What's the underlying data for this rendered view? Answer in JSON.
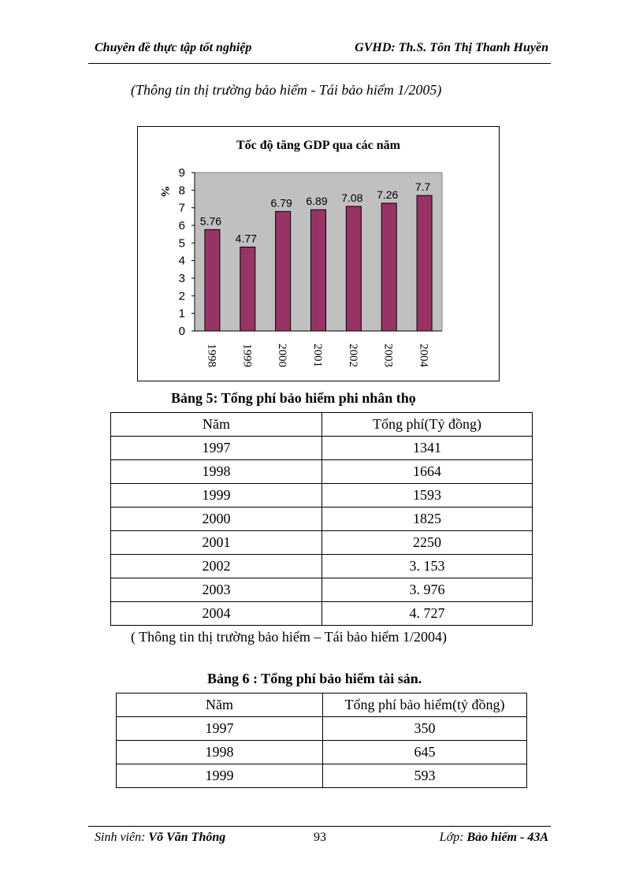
{
  "header": {
    "left": "Chuyên đề thực tập tốt nghiệp",
    "right": "GVHD: Th.S. Tôn Thị Thanh Huyền"
  },
  "source_top": "(Thông tin thị trường bảo hiểm - Tái bảo hiểm 1/2005)",
  "chart_data": {
    "type": "bar",
    "title": "Tốc độ tăng GDP qua các năm",
    "ylabel": "%",
    "xlabel": "",
    "categories": [
      "1998",
      "1999",
      "2000",
      "2001",
      "2002",
      "2003",
      "2004"
    ],
    "values": [
      5.76,
      4.77,
      6.79,
      6.89,
      7.08,
      7.26,
      7.7
    ],
    "data_labels": [
      "5.76",
      "4.77",
      "6.79",
      "6.89",
      "7.08",
      "7.26",
      "7.7"
    ],
    "ylim": [
      0,
      9
    ],
    "yticks": [
      "0",
      "1",
      "2",
      "3",
      "4",
      "5",
      "6",
      "7",
      "8",
      "9"
    ],
    "bar_color": "#993366",
    "plot_bg": "#c0c0c0",
    "grid": false
  },
  "table5": {
    "caption": "Bảng 5: Tổng phí bảo hiểm phi nhân thọ",
    "headers": [
      "Năm",
      "Tổng phí(Tỷ đồng)"
    ],
    "rows": [
      [
        "1997",
        "1341"
      ],
      [
        "1998",
        "1664"
      ],
      [
        "1999",
        "1593"
      ],
      [
        "2000",
        "1825"
      ],
      [
        "2001",
        "2250"
      ],
      [
        "2002",
        "3. 153"
      ],
      [
        "2003",
        "3. 976"
      ],
      [
        "2004",
        "4. 727"
      ]
    ]
  },
  "source_mid": "( Thông tin thị trường bảo hiểm – Tái bảo hiểm 1/2004)",
  "table6": {
    "caption": "Bảng 6 : Tổng phí bảo hiểm tài sản.",
    "headers": [
      "Năm",
      "Tổng phí bảo hiểm(tỷ đồng)"
    ],
    "rows": [
      [
        "1997",
        "350"
      ],
      [
        "1998",
        "645"
      ],
      [
        "1999",
        "593"
      ]
    ]
  },
  "footer": {
    "student_label": "Sinh viên:",
    "student_name": "Võ Văn Thông",
    "page_number": "93",
    "class_label": "Lớp:",
    "class_name": "Bảo hiểm - 43A"
  }
}
